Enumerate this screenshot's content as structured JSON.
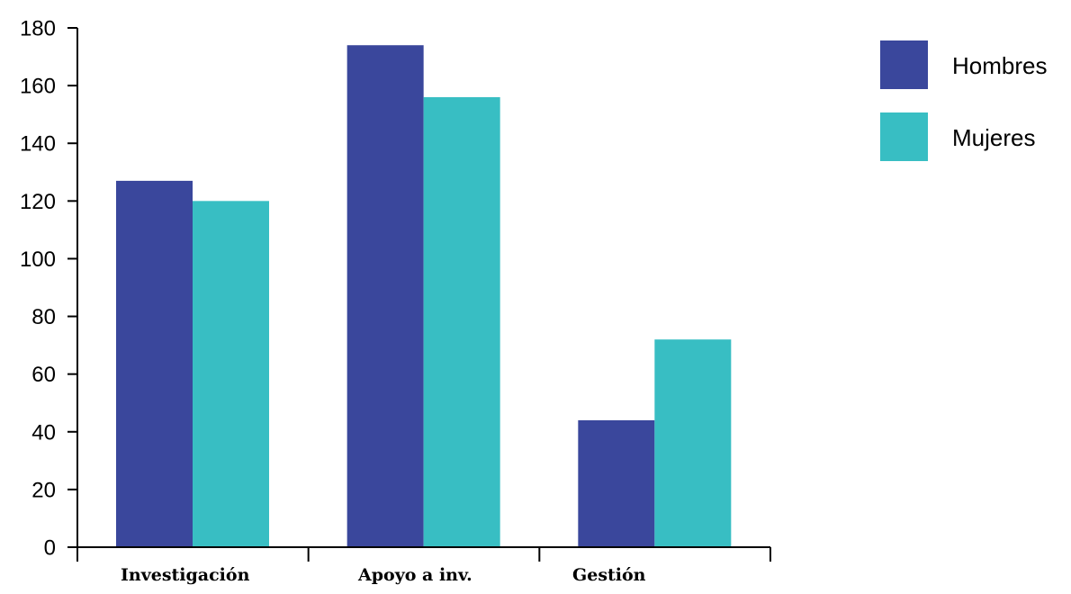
{
  "chart_data": {
    "type": "bar",
    "categories": [
      "Investigación",
      "Apoyo a inv.",
      "Gestión"
    ],
    "series": [
      {
        "name": "Hombres",
        "values": [
          127,
          174,
          44
        ],
        "color": "#3a479c"
      },
      {
        "name": "Mujeres",
        "values": [
          120,
          156,
          72
        ],
        "color": "#38bec3"
      }
    ],
    "ylim": [
      0,
      180
    ],
    "yticks": [
      0,
      20,
      40,
      60,
      80,
      100,
      120,
      140,
      160,
      180
    ],
    "title": "",
    "xlabel": "",
    "ylabel": "",
    "grid": false,
    "legend_position": "top-right"
  }
}
